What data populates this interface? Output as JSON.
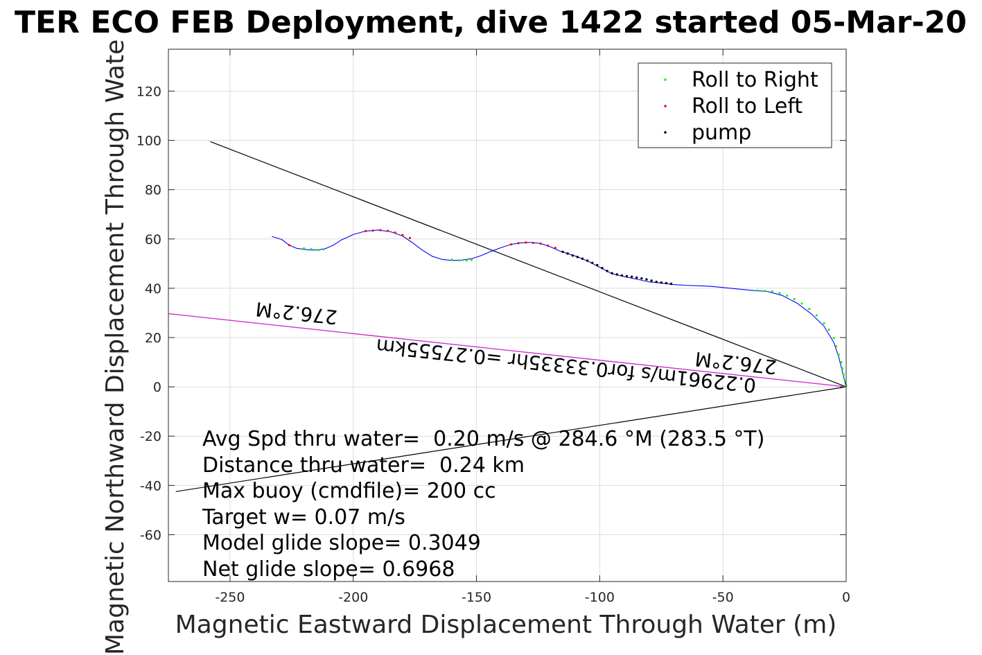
{
  "chart_data": {
    "type": "scatter",
    "title": "TER ECO FEB Deployment, dive 1422 started 05-Mar-20",
    "xlabel": "Magnetic Eastward Displacement Through Water (m)",
    "ylabel": "Magnetic Northward Displacement Through Wate",
    "xlim": [
      -275,
      0
    ],
    "ylim": [
      -79,
      137
    ],
    "xticks": [
      -250,
      -200,
      -150,
      -100,
      -50,
      0
    ],
    "yticks": [
      -60,
      -40,
      -20,
      0,
      20,
      40,
      60,
      80,
      100,
      120
    ],
    "grid": true,
    "legend_position": "top-right",
    "legend": [
      {
        "label": "Roll to Right",
        "color": "#00ff00"
      },
      {
        "label": "Roll to Left",
        "color": "#ff0000"
      },
      {
        "label": "pump",
        "color": "#000000"
      }
    ],
    "track": {
      "name": "track",
      "color": "#0000ff",
      "x": [
        -233,
        -229,
        -226,
        -223,
        -220,
        -217,
        -214,
        -211,
        -208,
        -205,
        -200,
        -195,
        -190,
        -185,
        -180,
        -176,
        -172,
        -168,
        -164,
        -160,
        -156,
        -152,
        -148,
        -144,
        -140,
        -136,
        -132,
        -128,
        -124,
        -120,
        -116,
        -110,
        -105,
        -100,
        -95,
        -90,
        -85,
        -80,
        -75,
        -70,
        -65,
        -55,
        -45,
        -38,
        -32,
        -26,
        -20,
        -14,
        -9,
        -5,
        -3,
        -1.5,
        0
      ],
      "y": [
        61,
        59.8,
        57.5,
        56.2,
        55.8,
        55.5,
        55.6,
        56.2,
        57.5,
        59.5,
        61.8,
        63.2,
        63.6,
        63.0,
        61.2,
        58.5,
        55.5,
        53.0,
        51.7,
        51.3,
        51.4,
        52.0,
        53.3,
        55.0,
        56.5,
        57.8,
        58.4,
        58.6,
        58.2,
        56.8,
        55.0,
        53.1,
        51.1,
        48.5,
        45.9,
        44.7,
        43.7,
        42.6,
        42.1,
        41.5,
        41.2,
        40.8,
        39.8,
        39.1,
        38.7,
        37.1,
        34.0,
        29.5,
        24.6,
        18.0,
        12.0,
        6.0,
        0
      ],
      "roll_right_x": [
        -220,
        -217,
        -214,
        -212,
        -160,
        -157,
        -154,
        -152,
        -36,
        -33,
        -30,
        -27,
        -24,
        -21,
        -18,
        -15,
        -12,
        -9,
        -7,
        -5,
        -4,
        -3,
        -2,
        -1.5,
        -1,
        -0.5,
        0
      ],
      "roll_right_y": [
        56.2,
        55.9,
        55.5,
        55.8,
        51.6,
        51.3,
        51.3,
        51.5,
        39.1,
        38.9,
        38.7,
        38.0,
        37.0,
        35.6,
        33.8,
        31.6,
        29.0,
        25.8,
        23.2,
        19.8,
        16.5,
        13.0,
        10.0,
        7.5,
        5.0,
        2.5,
        0.5
      ],
      "roll_left_x": [
        -226,
        -195,
        -192,
        -189,
        -186,
        -183,
        -180,
        -177,
        -136,
        -133,
        -130,
        -127,
        -124,
        -121,
        -118
      ],
      "roll_left_y": [
        57.5,
        63.2,
        63.4,
        63.6,
        63.3,
        62.6,
        61.6,
        60.4,
        57.8,
        58.3,
        58.6,
        58.4,
        58.1,
        57.3,
        56.4
      ],
      "pump_x": [
        -115,
        -113,
        -111,
        -109,
        -107,
        -105,
        -103,
        -101,
        -99,
        -97,
        -95,
        -93,
        -91,
        -89,
        -87,
        -85,
        -83,
        -81,
        -79,
        -77,
        -75,
        -73,
        -71
      ],
      "pump_y": [
        54.8,
        54.1,
        53.3,
        52.7,
        52.0,
        51.2,
        50.3,
        49.4,
        48.2,
        47.0,
        46.1,
        45.6,
        45.2,
        44.9,
        44.7,
        44.3,
        44.0,
        43.6,
        43.1,
        42.6,
        42.3,
        42.1,
        41.8
      ]
    },
    "lines": [
      {
        "name": "line-upper",
        "color": "#000000",
        "x": [
          -258,
          0
        ],
        "y": [
          99.5,
          0
        ]
      },
      {
        "name": "line-lower",
        "color": "#000000",
        "x": [
          -272,
          0
        ],
        "y": [
          -42.5,
          0
        ]
      },
      {
        "name": "line-heading",
        "color": "#cc33cc",
        "x": [
          -275,
          0
        ],
        "y": [
          29.7,
          0
        ]
      }
    ],
    "annotations": {
      "heading_label_1": "276.2°M",
      "heading_label_2": "276.2°M",
      "speed_label": "0.22961m/s for0.33335hr =0.27555km"
    },
    "stats": [
      "Avg Spd thru water=  0.20 m/s @ 284.6 °M (283.5 °T)",
      "Distance thru water=  0.24 km",
      "Max buoy (cmdfile)= 200 cc",
      "Target w= 0.07 m/s",
      "Model glide slope= 0.3049",
      "Net glide slope= 0.6968"
    ]
  }
}
